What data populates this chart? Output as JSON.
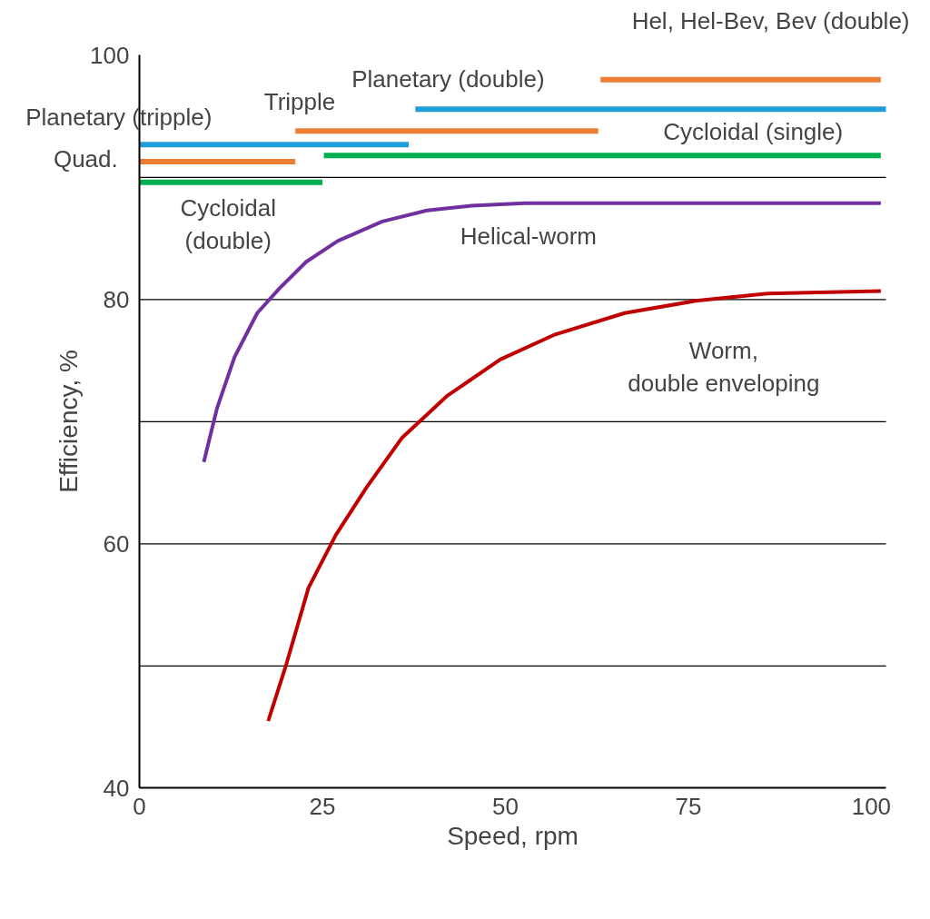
{
  "chart_data": {
    "type": "line",
    "xlabel": "Speed, rpm",
    "ylabel": "Efficiency, %",
    "xlim": [
      0,
      102
    ],
    "xticks": [
      0,
      25,
      50,
      75,
      100
    ],
    "ylim": [
      40,
      100
    ],
    "yticks": [
      40,
      {
        "value": 50,
        "label": null
      },
      60,
      {
        "value": 70,
        "label": null
      },
      80,
      {
        "value": 90,
        "label": null
      },
      100
    ],
    "grid": "y",
    "marker": "none",
    "line_style": "solid",
    "series": [
      {
        "name": "Hel, Hel-Bev, Bev (double)",
        "color": "#ed7d31",
        "x": [
          63,
          101.3
        ],
        "values": [
          98.0,
          98.0
        ]
      },
      {
        "name": "Planetary (double)",
        "color": "#1f9fd9",
        "x": [
          37.7,
          102
        ],
        "values": [
          95.6,
          95.6
        ]
      },
      {
        "name": "Tripple",
        "color": "#ed7d31",
        "x": [
          21.3,
          62.7
        ],
        "values": [
          93.8,
          93.8
        ]
      },
      {
        "name": "Planetary (tripple)",
        "color": "#1f9fd9",
        "x": [
          0,
          36.8
        ],
        "values": [
          92.7,
          92.7
        ]
      },
      {
        "name": "Cycloidal (single)",
        "color": "#00b050",
        "x": [
          25.2,
          101.3
        ],
        "values": [
          91.8,
          91.8
        ]
      },
      {
        "name": "Quad.",
        "color": "#ed7d31",
        "x": [
          0,
          21.3
        ],
        "values": [
          91.3,
          91.3
        ]
      },
      {
        "name": "Cycloidal\n(double)",
        "color": "#00b050",
        "x": [
          0,
          25
        ],
        "values": [
          89.6,
          89.6
        ]
      },
      {
        "name": "Helical-worm",
        "color": "#7030a0",
        "x": [
          8.8,
          10.6,
          13.0,
          16.1,
          19.1,
          22.8,
          27.1,
          33.2,
          39.3,
          45.4,
          52.7,
          101.3
        ],
        "values": [
          66.7,
          71.1,
          75.3,
          78.9,
          80.9,
          83.1,
          84.8,
          86.4,
          87.3,
          87.7,
          87.9,
          87.9
        ]
      },
      {
        "name": "Worm,\ndouble enveloping",
        "color": "#c00000",
        "x": [
          17.6,
          20.1,
          23.1,
          26.8,
          31.0,
          35.9,
          42.0,
          49.3,
          56.6,
          66.3,
          76.0,
          85.8,
          101.3
        ],
        "values": [
          45.5,
          50.2,
          56.4,
          60.7,
          64.6,
          68.7,
          72.1,
          75.1,
          77.1,
          78.9,
          79.9,
          80.5,
          80.7
        ]
      }
    ]
  }
}
